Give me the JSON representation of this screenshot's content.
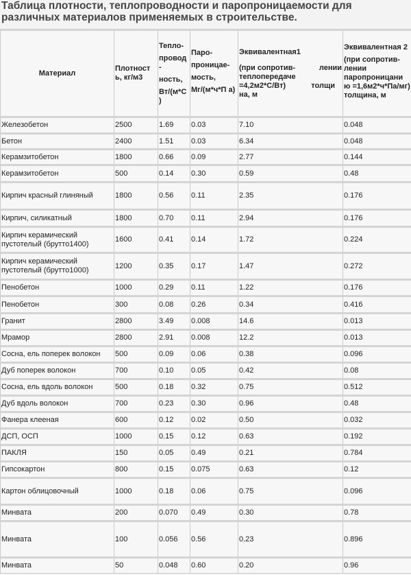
{
  "title": "Таблица плотности, теплопроводности и паропроницаемости для различных материалов применяемых в строительстве.",
  "headers": {
    "material": "Материал",
    "density": "Плотност ь, кг/м3",
    "conductivity": [
      "Тепло-",
      "провод",
      "-",
      "ность,",
      "Вт/(м*С )"
    ],
    "permeability": [
      "Паро-",
      "проницае-",
      "мость,",
      " Мг/(м*ч*П а)"
    ],
    "eq1": [
      "Эквивалентная1",
      "(при сопротив-",
      "лении",
      "теплопередаче =4,2м2*С/Вт)",
      "толщи",
      "на, м"
    ],
    "eq2": [
      "Эквивалентная 2",
      "(при сопротив- лении паропроницани ю =1,6м2*ч*Па/мг) толщина, м"
    ]
  },
  "rows": [
    [
      "Железобетон",
      "2500",
      "1.69",
      "0.03",
      "7.10",
      "0.048"
    ],
    [
      "Бетон",
      "2400",
      "1.51",
      "0.03",
      "6.34",
      "0.048"
    ],
    [
      "Керамзитобетон",
      "1800",
      "0.66",
      "0.09",
      "2.77",
      "0.144"
    ],
    [
      "Керамзитобетон",
      "500",
      "0.14",
      "0.30",
      "0.59",
      "0.48"
    ],
    [
      "Кирпич красный глиняный",
      "1800",
      "0.56",
      "0.11",
      "2.35",
      "0.176"
    ],
    [
      "Кирпич, силикатный",
      "1800",
      "0.70",
      "0.11",
      "2.94",
      "0.176"
    ],
    [
      "Кирпич керамический пустотелый (брутто1400)",
      "1600",
      "0.41",
      "0.14",
      "1.72",
      "0.224"
    ],
    [
      "Кирпич керамический пустотелый (брутто1000)",
      "1200",
      "0.35",
      "0.17",
      "1.47",
      "0.272"
    ],
    [
      "Пенобетон",
      "1000",
      "0.29",
      "0.11",
      "1.22",
      "0.176"
    ],
    [
      "Пенобетон",
      "300",
      "0.08",
      "0.26",
      "0.34",
      "0.416"
    ],
    [
      "Гранит",
      "2800",
      "3.49",
      "0.008",
      "14.6",
      "0.013"
    ],
    [
      "Мрамор",
      "2800",
      "2.91",
      "0.008",
      "12.2",
      "0.013"
    ],
    [
      "Сосна, ель поперек волокон",
      "500",
      "0.09",
      "0.06",
      "0.38",
      "0.096"
    ],
    [
      "Дуб поперек волокон",
      "700",
      "0.10",
      "0.05",
      "0.42",
      "0.08"
    ],
    [
      "Сосна, ель вдоль волокон",
      "500",
      "0.18",
      "0.32",
      "0.75",
      "0.512"
    ],
    [
      "Дуб вдоль волокон",
      "700",
      "0.23",
      "0.30",
      "0.96",
      "0.48"
    ],
    [
      "Фанера клееная",
      "600",
      "0.12",
      "0.02",
      "0.50",
      "0.032"
    ],
    [
      "ДСП, ОСП",
      "1000",
      "0.15",
      "0.12",
      "0.63",
      "0.192"
    ],
    [
      "ПАКЛЯ",
      "150",
      "0.05",
      "0.49",
      "0.21",
      "0.784"
    ],
    [
      "Гипсокартон",
      "800",
      "0.15",
      "0.075",
      "0.63",
      "0.12"
    ],
    [
      "Картон облицовочный",
      "1000",
      "0.18",
      "0.06",
      "0.75",
      "0.096"
    ],
    [
      "Минвата",
      "200",
      "0.070",
      "0.49",
      "0.30",
      "0.78"
    ],
    [
      "Минвата",
      "100",
      "0.056",
      "0.56",
      "0.23",
      "0.896"
    ],
    [
      "Минвата",
      "50",
      "0.048",
      "0.60",
      "0.20",
      "0.96"
    ]
  ]
}
